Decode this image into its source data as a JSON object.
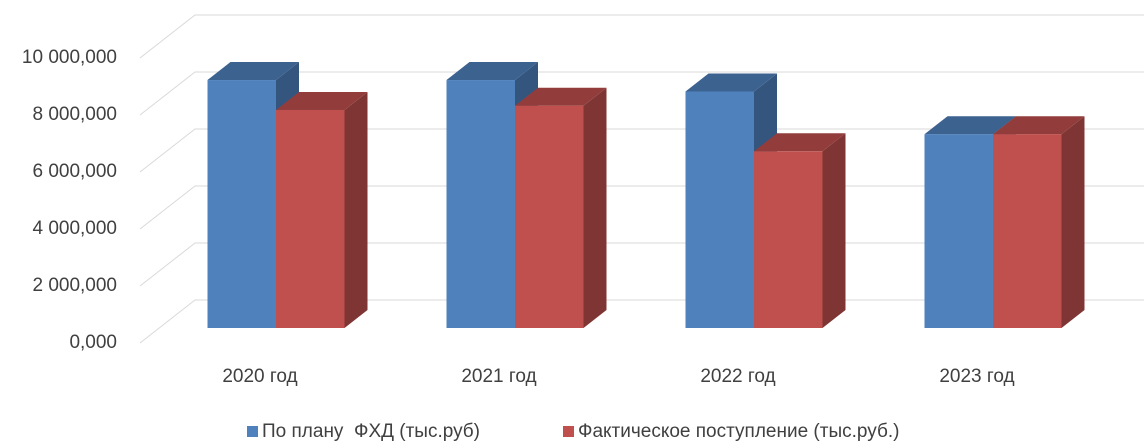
{
  "chart_data": {
    "type": "bar3d",
    "categories": [
      "2020 год",
      "2021 год",
      "2022 год",
      "2023 год"
    ],
    "series": [
      {
        "name": "По плану  ФХД (тыс.руб)",
        "color": "#4f81bd",
        "values": [
          8700000,
          8700000,
          8300000,
          6800000
        ]
      },
      {
        "name": "Фактическое поступление (тыс.руб.)",
        "color": "#c0504d",
        "values": [
          7650000,
          7800000,
          6200000,
          6800000
        ]
      }
    ],
    "ylim": [
      0,
      10000000
    ],
    "yticks": [
      {
        "value": 0,
        "label": "0,000"
      },
      {
        "value": 2000000,
        "label": "2 000,000"
      },
      {
        "value": 4000000,
        "label": "4 000,000"
      },
      {
        "value": 6000000,
        "label": "6 000,000"
      },
      {
        "value": 8000000,
        "label": "8 000,000"
      },
      {
        "value": 10000000,
        "label": "10 000,000"
      }
    ],
    "grid": true,
    "legend": "bottom"
  }
}
